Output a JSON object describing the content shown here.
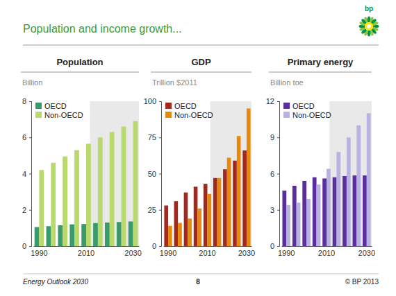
{
  "title": "Population and income growth...",
  "logo": "bp",
  "footer": {
    "source": "Energy Outlook 2030",
    "page": "8",
    "copyright": "© BP 2013"
  },
  "chart_data": [
    {
      "type": "bar",
      "title": "Population",
      "y_label": "Billion",
      "categories": [
        "1990",
        null,
        null,
        null,
        "2010",
        null,
        null,
        null,
        "2030"
      ],
      "series": [
        {
          "name": "OECD",
          "color": "#3a9a6c",
          "values": [
            1.05,
            1.1,
            1.15,
            1.2,
            1.22,
            1.27,
            1.3,
            1.33,
            1.36
          ]
        },
        {
          "name": "Non-OECD",
          "color": "#b9d96c",
          "values": [
            4.2,
            4.6,
            4.95,
            5.3,
            5.65,
            6.0,
            6.3,
            6.6,
            6.9
          ]
        }
      ],
      "ylim": [
        0,
        8
      ],
      "yticks": [
        0,
        2,
        4,
        6,
        8
      ],
      "grid": false,
      "legend": "top-left"
    },
    {
      "type": "bar",
      "title": "GDP",
      "y_label": "Trillion $2011",
      "categories": [
        "1990",
        null,
        null,
        null,
        "2010",
        null,
        null,
        null,
        "2030"
      ],
      "series": [
        {
          "name": "OECD",
          "color": "#a3281f",
          "values": [
            28,
            31,
            37,
            41,
            43,
            47,
            53,
            59,
            66
          ]
        },
        {
          "name": "Non-OECD",
          "color": "#e8890a",
          "values": [
            14,
            16,
            19,
            26,
            36,
            47,
            61,
            76,
            95
          ]
        }
      ],
      "ylim": [
        0,
        100
      ],
      "yticks": [
        0,
        25,
        50,
        75,
        100
      ],
      "grid": false,
      "legend": "top-left"
    },
    {
      "type": "bar",
      "title": "Primary energy",
      "y_label": "Billion toe",
      "categories": [
        "1990",
        null,
        null,
        null,
        "2010",
        null,
        null,
        null,
        "2030"
      ],
      "series": [
        {
          "name": "OECD",
          "color": "#5b2e9e",
          "values": [
            4.6,
            5.0,
            5.4,
            5.7,
            5.6,
            5.7,
            5.8,
            5.85,
            5.85
          ]
        },
        {
          "name": "Non-OECD",
          "color": "#b8b2e2",
          "values": [
            3.4,
            3.6,
            3.9,
            5.1,
            6.4,
            7.8,
            9.0,
            10.0,
            11.0
          ]
        }
      ],
      "ylim": [
        0,
        12
      ],
      "yticks": [
        0,
        3,
        6,
        9,
        12
      ],
      "grid": false,
      "legend": "top-left"
    }
  ]
}
